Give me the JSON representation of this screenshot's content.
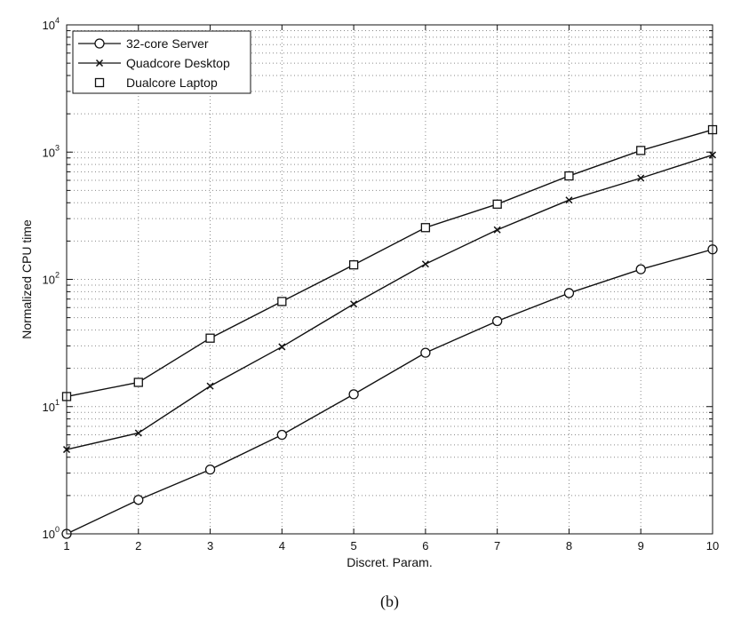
{
  "chart_data": {
    "type": "line",
    "x": [
      1,
      2,
      3,
      4,
      5,
      6,
      7,
      8,
      9,
      10
    ],
    "series": [
      {
        "name": "32-core Server",
        "marker": "circle",
        "values": [
          1.0,
          1.85,
          3.2,
          6.0,
          12.5,
          26.5,
          47,
          78,
          120,
          172
        ]
      },
      {
        "name": "Quadcore Desktop",
        "marker": "x",
        "values": [
          4.6,
          6.2,
          14.5,
          29.5,
          64,
          132,
          245,
          420,
          625,
          950
        ]
      },
      {
        "name": "Dualcore Laptop",
        "marker": "square",
        "values": [
          12,
          15.5,
          34.5,
          67,
          130,
          255,
          390,
          650,
          1030,
          1500
        ]
      }
    ],
    "xlabel": "Discret. Param.",
    "ylabel": "Normalized CPU time",
    "xlim": [
      1,
      10
    ],
    "ylim": [
      1,
      10000
    ],
    "yscale": "log",
    "x_ticks": [
      "1",
      "2",
      "3",
      "4",
      "5",
      "6",
      "7",
      "8",
      "9",
      "10"
    ],
    "y_ticks": [
      {
        "base": "10",
        "exp": "0",
        "value": 1
      },
      {
        "base": "10",
        "exp": "1",
        "value": 10
      },
      {
        "base": "10",
        "exp": "2",
        "value": 100
      },
      {
        "base": "10",
        "exp": "3",
        "value": 1000
      },
      {
        "base": "10",
        "exp": "4",
        "value": 10000
      }
    ],
    "grid": true,
    "legend": "top-left",
    "caption": "(b)",
    "line_color": "#111111",
    "grid_color": "#8a8a8a"
  }
}
